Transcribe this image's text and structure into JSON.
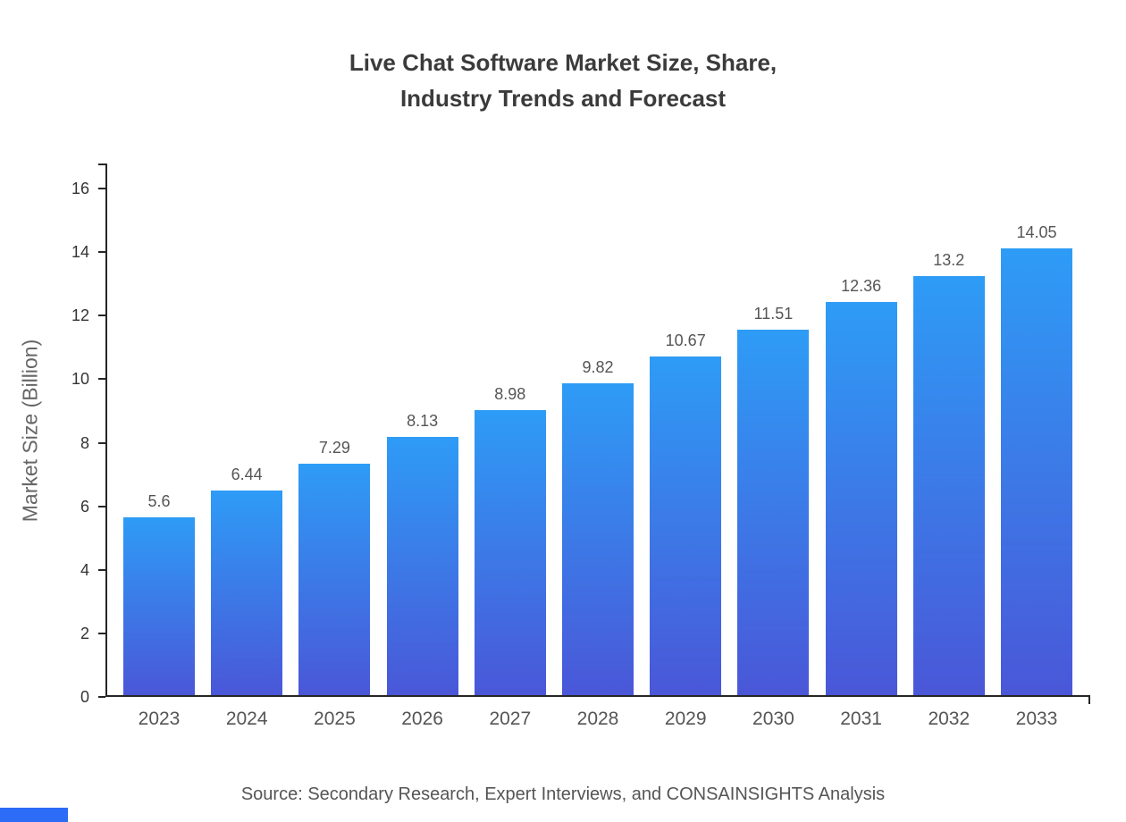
{
  "title": {
    "line1": "Live Chat Software Market Size, Share,",
    "line2": "Industry Trends and Forecast"
  },
  "chart_data": {
    "type": "bar",
    "title": "Live Chat Software Market Size, Share, Industry Trends and Forecast",
    "categories": [
      "2023",
      "2024",
      "2025",
      "2026",
      "2027",
      "2028",
      "2029",
      "2030",
      "2031",
      "2032",
      "2033"
    ],
    "values": [
      5.6,
      6.44,
      7.29,
      8.13,
      8.98,
      9.82,
      10.67,
      11.51,
      12.36,
      13.2,
      14.05
    ],
    "value_labels": [
      "5.6",
      "6.44",
      "7.29",
      "8.13",
      "8.98",
      "9.82",
      "10.67",
      "11.51",
      "12.36",
      "13.2",
      "14.05"
    ],
    "xlabel": "",
    "ylabel": "Market Size (Billion)",
    "ylim": [
      0,
      16
    ],
    "yticks": [
      0,
      2,
      4,
      6,
      8,
      10,
      12,
      14,
      16
    ],
    "grid": false,
    "legend": false
  },
  "colors": {
    "bar_top": "#2E9CF6",
    "bar_bottom": "#4A57D8",
    "axis": "#262626",
    "corner": "#2D6CF6"
  },
  "source": "Source: Secondary Research, Expert Interviews, and CONSAINSIGHTS Analysis"
}
